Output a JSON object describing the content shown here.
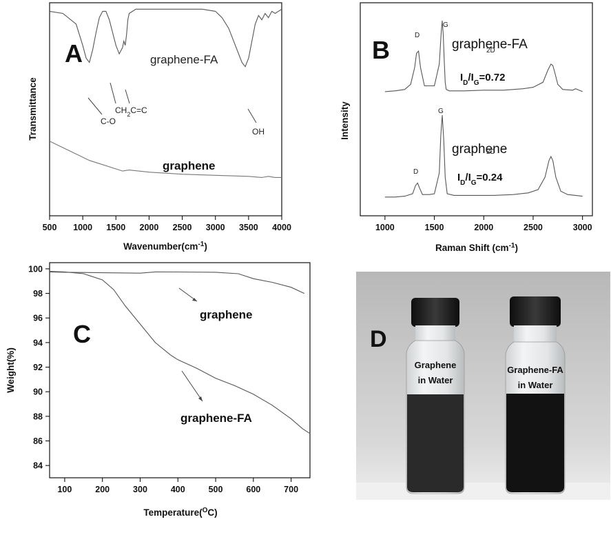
{
  "chart_data": [
    {
      "panel": "A",
      "type": "line",
      "xlabel": "Wavenumber(cm",
      "xlabel_sup": "-1",
      "xlabel_close": ")",
      "ylabel": "Transmittance",
      "xlim": [
        500,
        4000
      ],
      "xticks": [
        500,
        1000,
        1500,
        2000,
        2500,
        3000,
        3500,
        4000
      ],
      "series": [
        {
          "name": "graphene-FA",
          "x": [
            500,
            700,
            900,
            1000,
            1050,
            1100,
            1150,
            1200,
            1250,
            1300,
            1350,
            1400,
            1450,
            1500,
            1550,
            1600,
            1620,
            1640,
            1660,
            1680,
            1700,
            1750,
            1800,
            2000,
            2500,
            2800,
            3000,
            3100,
            3200,
            3300,
            3400,
            3450,
            3500,
            3550,
            3600,
            3650,
            3700,
            3750,
            3800,
            3850,
            3900,
            4000
          ],
          "y": [
            0.96,
            0.95,
            0.9,
            0.8,
            0.74,
            0.72,
            0.78,
            0.86,
            0.93,
            0.96,
            0.96,
            0.92,
            0.86,
            0.8,
            0.76,
            0.79,
            0.82,
            0.8,
            0.85,
            0.92,
            0.95,
            0.96,
            0.97,
            0.97,
            0.97,
            0.97,
            0.96,
            0.93,
            0.88,
            0.8,
            0.72,
            0.7,
            0.74,
            0.82,
            0.9,
            0.94,
            0.92,
            0.95,
            0.93,
            0.96,
            0.95,
            0.97
          ]
        },
        {
          "name": "graphene",
          "x": [
            500,
            700,
            900,
            1100,
            1300,
            1500,
            1600,
            1700,
            2000,
            2500,
            3000,
            3500,
            3700,
            3800,
            3900,
            4000
          ],
          "y": [
            0.35,
            0.32,
            0.29,
            0.26,
            0.24,
            0.22,
            0.21,
            0.215,
            0.205,
            0.195,
            0.19,
            0.185,
            0.18,
            0.185,
            0.18,
            0.18
          ]
        }
      ],
      "labels": {
        "series_top": "graphene-FA",
        "series_bottom": "graphene",
        "co": "C-O",
        "ch2": "CH",
        "ch2_sub": "2",
        "cc": "C=C",
        "oh": "OH"
      }
    },
    {
      "panel": "B",
      "type": "line",
      "xlabel": "Raman Shift (cm",
      "xlabel_sup": "-1",
      "xlabel_close": ")",
      "ylabel": "Intensity",
      "xlim": [
        750,
        3100
      ],
      "xticks": [
        1000,
        1500,
        2000,
        2500,
        3000
      ],
      "series": [
        {
          "name": "graphene-FA",
          "x": [
            1000,
            1100,
            1200,
            1260,
            1300,
            1320,
            1340,
            1360,
            1400,
            1500,
            1550,
            1570,
            1580,
            1590,
            1600,
            1610,
            1620,
            1650,
            1800,
            2000,
            2200,
            2400,
            2500,
            2600,
            2650,
            2680,
            2700,
            2720,
            2750,
            2800,
            2900,
            2930,
            3000
          ],
          "y": [
            0.02,
            0.03,
            0.05,
            0.12,
            0.35,
            0.55,
            0.58,
            0.35,
            0.1,
            0.1,
            0.4,
            0.85,
            1.0,
            0.8,
            0.45,
            0.15,
            0.05,
            0.03,
            0.03,
            0.04,
            0.04,
            0.06,
            0.08,
            0.15,
            0.32,
            0.4,
            0.38,
            0.28,
            0.12,
            0.05,
            0.04,
            0.06,
            0.02
          ]
        },
        {
          "name": "graphene",
          "x": [
            1000,
            1100,
            1200,
            1280,
            1310,
            1330,
            1350,
            1380,
            1450,
            1500,
            1550,
            1565,
            1580,
            1595,
            1610,
            1630,
            1700,
            1900,
            2100,
            2300,
            2450,
            2550,
            2620,
            2660,
            2680,
            2700,
            2730,
            2780,
            2850,
            3000
          ],
          "y": [
            0.01,
            0.01,
            0.02,
            0.05,
            0.15,
            0.18,
            0.12,
            0.04,
            0.04,
            0.05,
            0.3,
            0.75,
            1.0,
            0.7,
            0.25,
            0.05,
            0.03,
            0.03,
            0.03,
            0.04,
            0.06,
            0.1,
            0.25,
            0.45,
            0.5,
            0.45,
            0.25,
            0.08,
            0.04,
            0.02
          ]
        }
      ],
      "labels": {
        "series_top": "graphene-FA",
        "series_bottom": "graphene",
        "d": "D",
        "g": "G",
        "twod": "2D",
        "ratio_top": "=0.72",
        "ratio_bottom": "=0.24",
        "i": "I",
        "sub_d": "D",
        "slash": "/",
        "sub_g": "G"
      }
    },
    {
      "panel": "C",
      "type": "line",
      "xlabel": "Temperature(",
      "xlabel_sup": "O",
      "xlabel_unit": "C)",
      "ylabel": "Weight(%)",
      "xlim": [
        60,
        750
      ],
      "ylim": [
        83,
        100.5
      ],
      "xticks": [
        100,
        200,
        300,
        400,
        500,
        600,
        700
      ],
      "yticks": [
        84,
        86,
        88,
        90,
        92,
        94,
        96,
        98,
        100
      ],
      "series": [
        {
          "name": "graphene",
          "x": [
            60,
            100,
            200,
            300,
            340,
            400,
            500,
            560,
            600,
            650,
            700,
            735
          ],
          "y": [
            99.75,
            99.72,
            99.68,
            99.65,
            99.75,
            99.74,
            99.72,
            99.6,
            99.2,
            98.9,
            98.5,
            98.0
          ]
        },
        {
          "name": "graphene-FA",
          "x": [
            60,
            100,
            150,
            200,
            230,
            260,
            300,
            340,
            380,
            400,
            450,
            500,
            550,
            600,
            650,
            700,
            730,
            750
          ],
          "y": [
            99.8,
            99.75,
            99.6,
            99.1,
            98.3,
            97.0,
            95.5,
            94.0,
            93.0,
            92.6,
            91.9,
            91.1,
            90.5,
            89.8,
            88.9,
            87.8,
            87.0,
            86.6
          ]
        }
      ],
      "labels": {
        "series_top": "graphene",
        "series_bottom": "graphene-FA"
      }
    }
  ],
  "panel_letters": {
    "a": "A",
    "b": "B",
    "c": "C",
    "d": "D"
  },
  "photo": {
    "left_label_line1": "Graphene",
    "left_label_line2": "in  Water",
    "right_label_line1": "Graphene-FA",
    "right_label_line2": "in  Water",
    "colors": {
      "background_top": "#bdbdbd",
      "background_bottom": "#e9e9e9",
      "cap": "#1b1b1b",
      "liquid_left": "#2a2a2a",
      "liquid_right": "#121212"
    }
  }
}
